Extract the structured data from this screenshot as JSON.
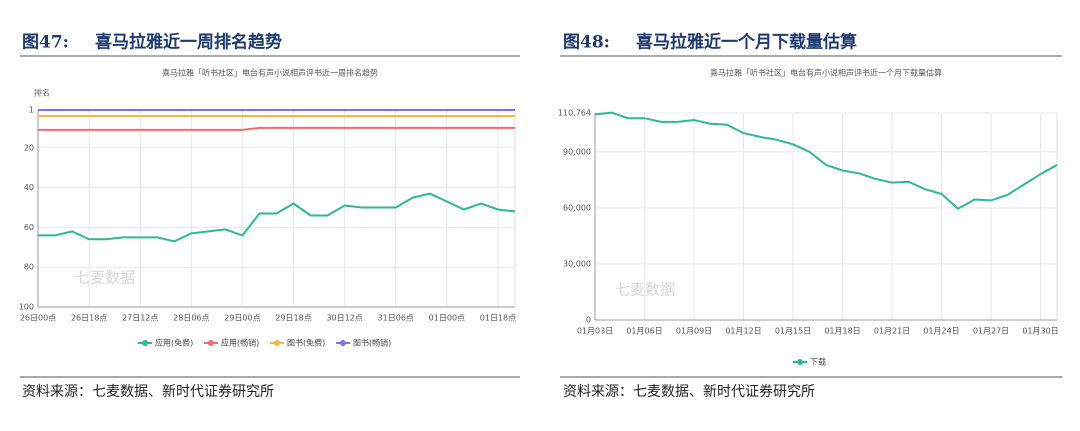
{
  "figures": [
    {
      "label": "图47:",
      "title": "喜马拉雅近一周排名趋势",
      "source": "资料来源：七麦数据、新时代证券研究所"
    },
    {
      "label": "图48:",
      "title": "喜马拉雅近一个月下载量估算",
      "source": "资料来源：七麦数据、新时代证券研究所"
    }
  ],
  "chart_data": [
    {
      "type": "line",
      "title": "喜马拉雅「听书社区」电台有声小说相声评书近一周排名趋势",
      "y_label": "排名",
      "watermark": "七麦数据",
      "x": [
        0,
        6,
        12,
        18,
        24,
        30,
        36,
        42,
        48,
        54,
        60,
        66,
        72,
        78,
        84,
        90,
        96,
        102,
        108,
        114,
        120,
        126,
        132,
        138,
        144,
        150,
        156,
        162,
        168
      ],
      "xlim": [
        0,
        168
      ],
      "xticks": [
        {
          "value": 0,
          "label": "26日00点"
        },
        {
          "value": 18,
          "label": "26日18点"
        },
        {
          "value": 36,
          "label": "27日12点"
        },
        {
          "value": 54,
          "label": "28日06点"
        },
        {
          "value": 72,
          "label": "29日00点"
        },
        {
          "value": 90,
          "label": "29日18点"
        },
        {
          "value": 108,
          "label": "30日12点"
        },
        {
          "value": 126,
          "label": "31日06点"
        },
        {
          "value": 144,
          "label": "01日00点"
        },
        {
          "value": 162,
          "label": "01日18点"
        }
      ],
      "ylim": [
        100,
        1
      ],
      "yticks": [
        1,
        20,
        40,
        60,
        80,
        100
      ],
      "grid": true,
      "legend": "bottom",
      "series": [
        {
          "name": "应用(免费)",
          "color": "#2bb996",
          "values": [
            64,
            64,
            62,
            66,
            66,
            65,
            65,
            65,
            67,
            63,
            62,
            61,
            64,
            53,
            53,
            48,
            54,
            54,
            49,
            50,
            50,
            50,
            45,
            43,
            47,
            51,
            48,
            51,
            52
          ]
        },
        {
          "name": "应用(畅销)",
          "color": "#f26b6b",
          "values": [
            11,
            11,
            11,
            11,
            11,
            11,
            11,
            11,
            11,
            11,
            11,
            11,
            11,
            10,
            10,
            10,
            10,
            10,
            10,
            10,
            10,
            10,
            10,
            10,
            10,
            10,
            10,
            10,
            10
          ]
        },
        {
          "name": "图书(免费)",
          "color": "#f6b545",
          "values": [
            4,
            4,
            4,
            4,
            4,
            4,
            4,
            4,
            4,
            4,
            4,
            4,
            4,
            4,
            4,
            4,
            4,
            4,
            4,
            4,
            4,
            4,
            4,
            4,
            4,
            4,
            4,
            4,
            4
          ]
        },
        {
          "name": "图书(畅销)",
          "color": "#7d6ef2",
          "values": [
            1,
            1,
            1,
            1,
            1,
            1,
            1,
            1,
            1,
            1,
            1,
            1,
            1,
            1,
            1,
            1,
            1,
            1,
            1,
            1,
            1,
            1,
            1,
            1,
            1,
            1,
            1,
            1,
            1
          ]
        }
      ]
    },
    {
      "type": "line",
      "title": "喜马拉雅「听书社区」电台有声小说相声评书近一个月下载量估算",
      "watermark": "七麦数据",
      "categories": [
        "01月03日",
        null,
        null,
        "01月06日",
        null,
        null,
        "01月09日",
        null,
        null,
        "01月12日",
        null,
        null,
        "01月15日",
        null,
        null,
        "01月18日",
        null,
        null,
        "01月21日",
        null,
        null,
        "01月24日",
        null,
        null,
        "01月27日",
        null,
        null,
        "01月30日",
        null
      ],
      "ylim": [
        0,
        110764
      ],
      "yticks": [
        0,
        {
          "value": 30000,
          "label": "30,000"
        },
        {
          "value": 60000,
          "label": "60,000"
        },
        {
          "value": 90000,
          "label": "90,000"
        },
        {
          "value": 110764,
          "label": "110,764"
        }
      ],
      "grid": true,
      "legend": "bottom",
      "series": [
        {
          "name": "下载",
          "color": "#2bb996",
          "values": [
            110000,
            111000,
            108000,
            108000,
            106000,
            106000,
            107000,
            105000,
            104500,
            100000,
            98000,
            96500,
            94000,
            90000,
            83000,
            80000,
            78500,
            75500,
            73500,
            74000,
            70000,
            67500,
            59500,
            64500,
            64000,
            67000,
            72500,
            78000,
            83000
          ]
        }
      ]
    }
  ]
}
